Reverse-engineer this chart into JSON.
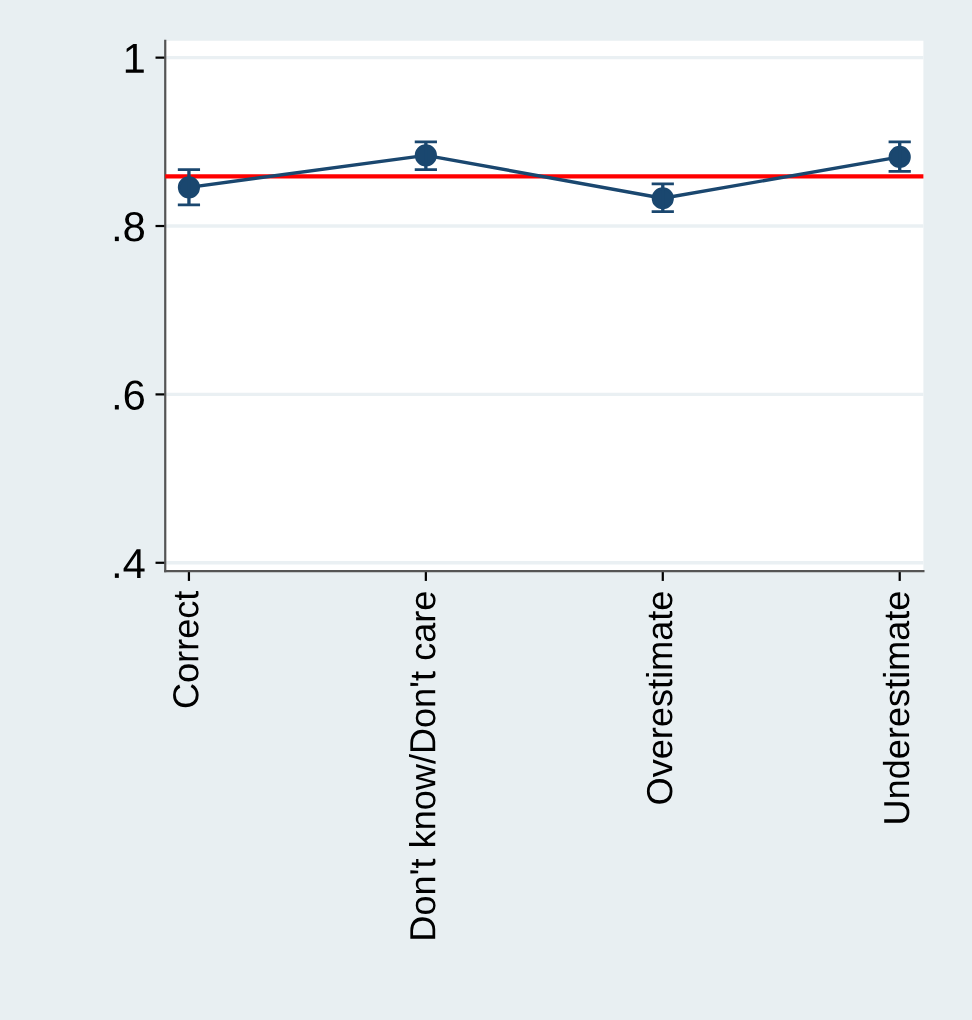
{
  "chart_data": {
    "type": "line",
    "categories": [
      "Correct",
      "Don't know/Don't care",
      "Overestimate",
      "Underestimate"
    ],
    "series": [
      {
        "color": "#1a476f",
        "values": [
          0.846,
          0.884,
          0.833,
          0.882
        ],
        "errors": [
          [
            0.825,
            0.867
          ],
          [
            0.867,
            0.9
          ],
          [
            0.817,
            0.85
          ],
          [
            0.865,
            0.9
          ]
        ]
      }
    ],
    "ylim": [
      0.39,
      1.02
    ],
    "yticks": [
      {
        "value": 0.4,
        "label": ".4"
      },
      {
        "value": 0.6,
        "label": ".6"
      },
      {
        "value": 0.8,
        "label": ".8"
      },
      {
        "value": 1,
        "label": "1"
      }
    ],
    "ref_lines": [
      {
        "axis": "y",
        "value": 0.859,
        "color": "#ff0000"
      }
    ],
    "grid": "y",
    "marker": "circle",
    "line_style": "solid",
    "legend": false
  }
}
